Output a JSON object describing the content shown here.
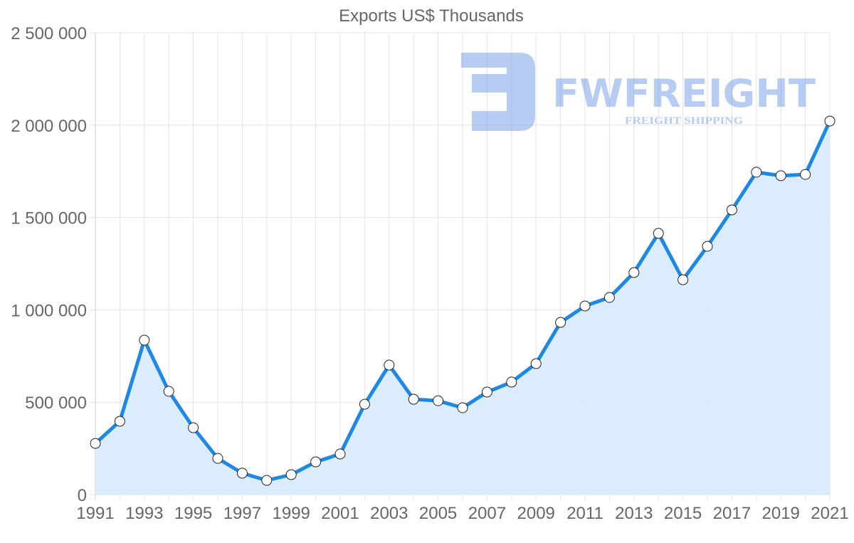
{
  "chart_data": {
    "type": "line",
    "title": "Exports US$ Thousands",
    "xlabel": "",
    "ylabel": "",
    "ylim": [
      0,
      2500000
    ],
    "yticks": [
      "0",
      "500 000",
      "1 000 000",
      "1 500 000",
      "2 000 000",
      "2 500 000"
    ],
    "ytick_values": [
      0,
      500000,
      1000000,
      1500000,
      2000000,
      2500000
    ],
    "xticks": [
      "1991",
      "1993",
      "1995",
      "1997",
      "1999",
      "2001",
      "2003",
      "2005",
      "2007",
      "2009",
      "2011",
      "2013",
      "2015",
      "2017",
      "2019",
      "2021"
    ],
    "grid": true,
    "legend": false,
    "fill": true,
    "x": [
      1991,
      1992,
      1993,
      1994,
      1995,
      1996,
      1997,
      1998,
      1999,
      2000,
      2001,
      2002,
      2003,
      2004,
      2005,
      2006,
      2007,
      2008,
      2009,
      2010,
      2011,
      2012,
      2013,
      2014,
      2015,
      2016,
      2017,
      2018,
      2019,
      2020,
      2021
    ],
    "series": [
      {
        "name": "Exports US$ Thousands",
        "values": [
          277000,
          397000,
          836000,
          559000,
          362000,
          196000,
          116000,
          77000,
          108000,
          177000,
          220000,
          489000,
          701000,
          516000,
          508000,
          470000,
          555000,
          609000,
          709000,
          932000,
          1021000,
          1067000,
          1202000,
          1414000,
          1163000,
          1344000,
          1541000,
          1745000,
          1726000,
          1733000,
          2022000
        ]
      }
    ]
  },
  "colors": {
    "line": "#1e88e5",
    "fill": "#d9ecfd",
    "point_fill": "#ffffff",
    "point_stroke": "#222222",
    "text": "#666666",
    "grid": "#e3e3e3",
    "watermark": "#6f9ae6"
  },
  "watermark": {
    "logo_icon": "fw-logo-icon",
    "brand": "FWFREIGHT",
    "tagline": "FREIGHT SHIPPING"
  }
}
